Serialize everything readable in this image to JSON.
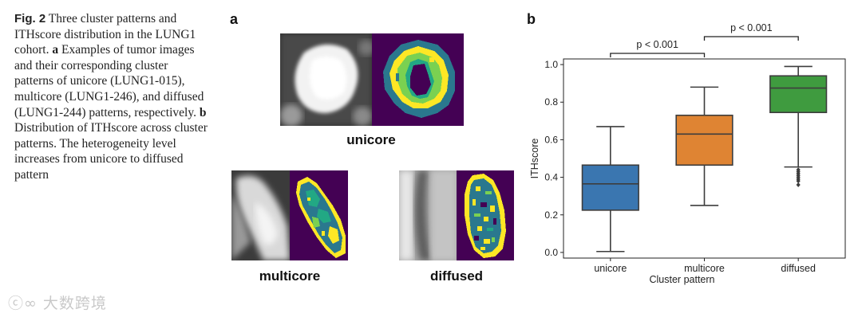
{
  "caption": {
    "fig_label": "Fig. 2",
    "title": "Three cluster patterns and ITHscore distribution in the LUNG1 cohort.",
    "a_letter": "a",
    "a_text": "Examples of tumor images and their corresponding cluster patterns of unicore (LUNG1-015), multicore (LUNG1-246), and diffused (LUNG1-244) patterns, respectively.",
    "b_letter": "b",
    "b_text": "Distribution of ITHscore across cluster patterns. The heterogeneity level increases from unicore to diffused pattern"
  },
  "panel_a": {
    "letter": "a",
    "examples": [
      {
        "label": "unicore"
      },
      {
        "label": "multicore"
      },
      {
        "label": "diffused"
      }
    ],
    "colors": {
      "purple": "#440154",
      "teal": "#2a788e",
      "green": "#22a884",
      "lime": "#7ad151",
      "yellow": "#fde725"
    }
  },
  "panel_b": {
    "letter": "b",
    "chart_data": {
      "type": "box",
      "categories": [
        "unicore",
        "multicore",
        "diffused"
      ],
      "xlabel": "Cluster pattern",
      "ylabel": "ITHscore",
      "ylim": [
        -0.03,
        1.03
      ],
      "yticks": [
        "0.0",
        "0.2",
        "0.4",
        "0.6",
        "0.8",
        "1.0"
      ],
      "grid": false,
      "boxes": [
        {
          "name": "unicore",
          "color": "#3a76b0",
          "whisker_low": 0.005,
          "q1": 0.225,
          "median": 0.365,
          "q3": 0.465,
          "whisker_high": 0.67,
          "outliers": []
        },
        {
          "name": "multicore",
          "color": "#df8433",
          "whisker_low": 0.25,
          "q1": 0.465,
          "median": 0.63,
          "q3": 0.73,
          "whisker_high": 0.88,
          "outliers": []
        },
        {
          "name": "diffused",
          "color": "#3f9b3f",
          "whisker_low": 0.455,
          "q1": 0.745,
          "median": 0.875,
          "q3": 0.94,
          "whisker_high": 0.99,
          "outliers": [
            0.44,
            0.43,
            0.42,
            0.41,
            0.4,
            0.39,
            0.38,
            0.36
          ]
        }
      ],
      "annotations": [
        {
          "from": "unicore",
          "to": "multicore",
          "text": "p < 0.001"
        },
        {
          "from": "multicore",
          "to": "diffused",
          "text": "p < 0.001"
        }
      ]
    }
  },
  "watermark": "大数跨境"
}
